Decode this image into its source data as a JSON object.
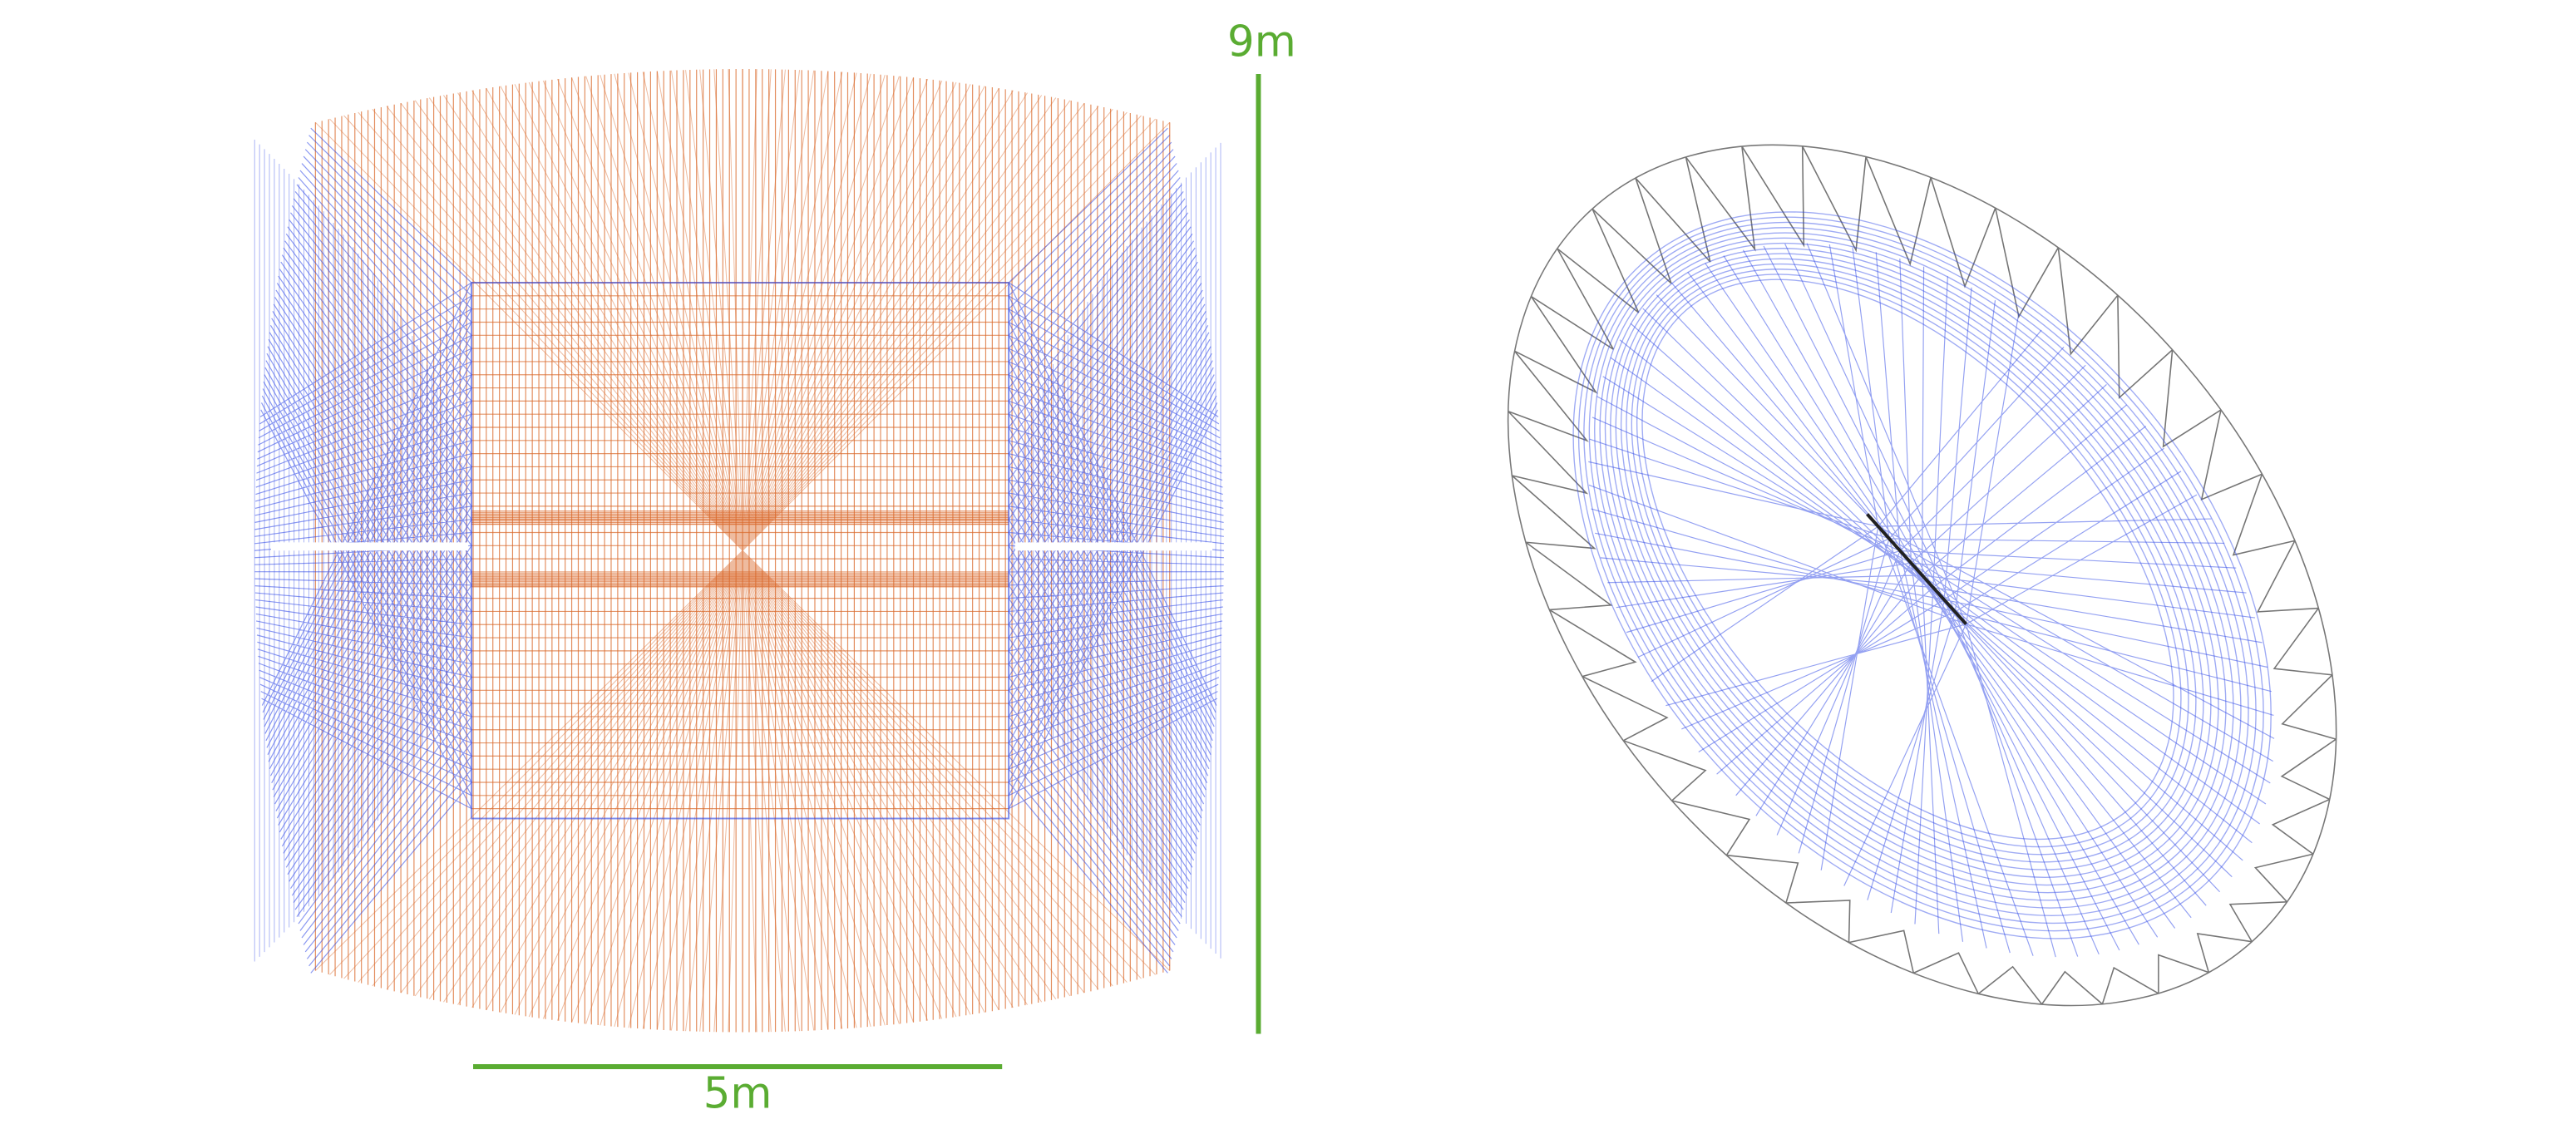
{
  "labels": {
    "height": "9m",
    "width": "5m"
  }
}
